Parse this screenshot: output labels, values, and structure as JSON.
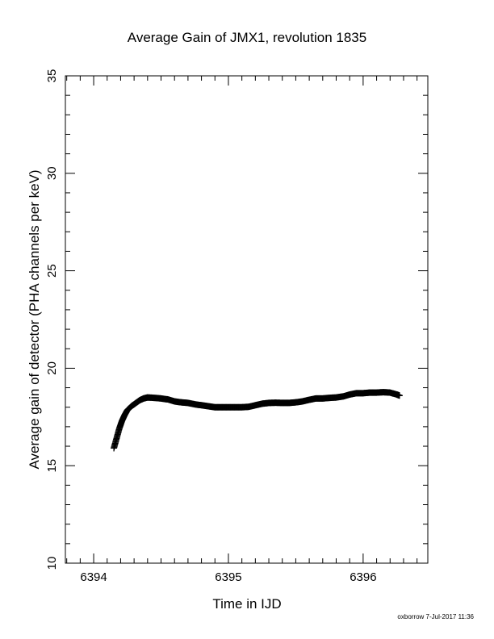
{
  "chart_data": {
    "type": "scatter",
    "title": "Average Gain of JMX1, revolution 1835",
    "xlabel": "Time in IJD",
    "ylabel": "Average gain of detector (PHA channels per keV)",
    "xlim": [
      6393.79,
      6396.48
    ],
    "ylim": [
      10,
      35
    ],
    "xticks": [
      6394,
      6395,
      6396
    ],
    "xtick_labels": [
      "6394",
      "6395",
      "6396"
    ],
    "yticks": [
      10,
      15,
      20,
      25,
      30,
      35
    ],
    "ytick_labels": [
      "10",
      "15",
      "20",
      "25",
      "30",
      "35"
    ],
    "grid": false,
    "marker": "plus",
    "series": [
      {
        "values_xy": [
          [
            6394.15,
            15.9
          ],
          [
            6394.17,
            16.4
          ],
          [
            6394.19,
            16.9
          ],
          [
            6394.21,
            17.3
          ],
          [
            6394.23,
            17.6
          ],
          [
            6394.25,
            17.85
          ],
          [
            6394.28,
            18.05
          ],
          [
            6394.31,
            18.2
          ],
          [
            6394.34,
            18.35
          ],
          [
            6394.37,
            18.45
          ],
          [
            6394.4,
            18.5
          ],
          [
            6394.45,
            18.48
          ],
          [
            6394.5,
            18.45
          ],
          [
            6394.55,
            18.4
          ],
          [
            6394.6,
            18.3
          ],
          [
            6394.65,
            18.25
          ],
          [
            6394.7,
            18.22
          ],
          [
            6394.75,
            18.15
          ],
          [
            6394.8,
            18.1
          ],
          [
            6394.85,
            18.05
          ],
          [
            6394.9,
            18.0
          ],
          [
            6394.95,
            18.0
          ],
          [
            6395.0,
            18.0
          ],
          [
            6395.05,
            18.0
          ],
          [
            6395.1,
            18.0
          ],
          [
            6395.15,
            18.02
          ],
          [
            6395.2,
            18.1
          ],
          [
            6395.25,
            18.18
          ],
          [
            6395.3,
            18.22
          ],
          [
            6395.35,
            18.23
          ],
          [
            6395.4,
            18.22
          ],
          [
            6395.45,
            18.22
          ],
          [
            6395.5,
            18.25
          ],
          [
            6395.55,
            18.3
          ],
          [
            6395.6,
            18.38
          ],
          [
            6395.65,
            18.45
          ],
          [
            6395.7,
            18.45
          ],
          [
            6395.75,
            18.48
          ],
          [
            6395.8,
            18.5
          ],
          [
            6395.85,
            18.55
          ],
          [
            6395.9,
            18.65
          ],
          [
            6395.95,
            18.72
          ],
          [
            6396.0,
            18.72
          ],
          [
            6396.05,
            18.75
          ],
          [
            6396.1,
            18.75
          ],
          [
            6396.15,
            18.77
          ],
          [
            6396.2,
            18.75
          ],
          [
            6396.25,
            18.65
          ],
          [
            6396.27,
            18.6
          ]
        ]
      }
    ]
  },
  "footer": "oxborrow  7-Jul-2017 11:36"
}
